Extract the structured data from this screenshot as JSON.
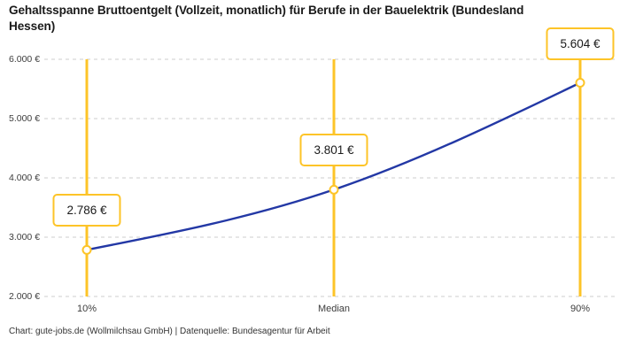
{
  "header": {
    "title": "Gehaltsspanne Bruttoentgelt (Vollzeit, monatlich) für Berufe in der Bauelektrik (Bundesland Hessen)"
  },
  "footer": {
    "credit": "Chart: gute-jobs.de (Wollmilchsau GmbH) | Datenquelle: Bundesagentur für Arbeit"
  },
  "chart_data": {
    "type": "line",
    "title": "Gehaltsspanne Bruttoentgelt (Vollzeit, monatlich) für Berufe in der Bauelektrik (Bundesland Hessen)",
    "categories": [
      "10%",
      "Median",
      "90%"
    ],
    "values": [
      2786,
      3801,
      5604
    ],
    "value_labels": [
      "2.786 €",
      "3.801 €",
      "5.604 €"
    ],
    "y_ticks": [
      {
        "value": 6000,
        "label": "6.000 €"
      },
      {
        "value": 5000,
        "label": "5.000 €"
      },
      {
        "value": 4000,
        "label": "4.000 €"
      },
      {
        "value": 3000,
        "label": "3.000 €"
      },
      {
        "value": 2000,
        "label": "2.000 €"
      }
    ],
    "ylim": [
      2000,
      6000
    ],
    "xlabel": "",
    "ylabel": "",
    "grid": "horizontal-dashed",
    "legend": "none",
    "colors": {
      "line": "#2338a5",
      "accent": "#fdc428",
      "grid": "#cccccc",
      "marker_fill": "#ffffff",
      "text": "#3c3c3c"
    }
  }
}
